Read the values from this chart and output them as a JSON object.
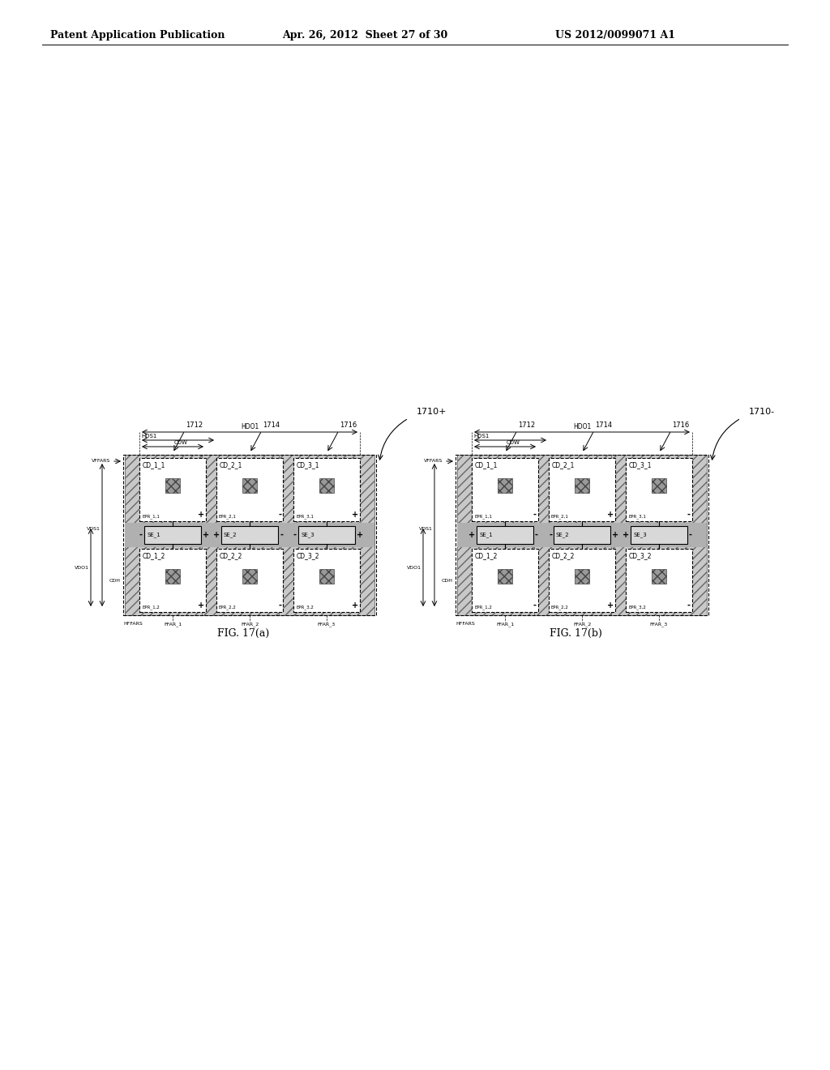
{
  "title_left": "Patent Application Publication",
  "title_mid": "Apr. 26, 2012  Sheet 27 of 30",
  "title_right": "US 2012/0099071 A1",
  "fig_a_label": "FIG. 17(a)",
  "fig_b_label": "FIG. 17(b)",
  "diagram_a": {
    "label": "1710+",
    "hdo1": "HDO1",
    "hds1": "HDS1",
    "cdw": "CDW",
    "ref_1712": "1712",
    "ref_1714": "1714",
    "ref_1716": "1716",
    "vffars": "VFFARS",
    "vds1": "VDS1",
    "vdo1": "VDO1",
    "cdh": "CDH",
    "hffars": "HFFARS",
    "ffar1": "FFAR_1",
    "ffar2": "FFAR_2",
    "ffar3": "FFAR_3",
    "cells_top": [
      "CD_1_1",
      "CD_2_1",
      "CD_3_1"
    ],
    "cells_bot": [
      "CD_1_2",
      "CD_2_2",
      "CD_3_2"
    ],
    "se_labels": [
      "SE_1",
      "SE_2",
      "SE_3"
    ],
    "epr_top": [
      "EPR_1,1",
      "EPR_2,1",
      "EPR_3,1"
    ],
    "epr_bot": [
      "EPR_1,2",
      "EPR_2,2",
      "EPR_3,2"
    ],
    "top_signs": [
      "+",
      "-",
      "+"
    ],
    "mid_left_signs": [
      "-",
      "+",
      "-"
    ],
    "mid_right_signs": [
      "+",
      "-",
      "+"
    ],
    "bot_signs": [
      "+",
      "-",
      "+"
    ]
  },
  "diagram_b": {
    "label": "1710-",
    "hdo1": "HDO1",
    "hds1": "HDS1",
    "cdw": "CDW",
    "ref_1712": "1712",
    "ref_1714": "1714",
    "ref_1716": "1716",
    "vffars": "VFFARS",
    "vds1": "VDS1",
    "vdo1": "VDO1",
    "cdh": "CDH",
    "hffars": "HFFARS",
    "ffar1": "FFAR_1",
    "ffar2": "FFAR_2",
    "ffar3": "FFAR_3",
    "cells_top": [
      "CD_1_1",
      "CD_2_1",
      "CD_3_1"
    ],
    "cells_bot": [
      "CD_1_2",
      "CD_2_2",
      "CD_3_2"
    ],
    "se_labels": [
      "SE_1",
      "SE_2",
      "SE_3"
    ],
    "epr_top": [
      "EPR_1,1",
      "EPR_2,1",
      "EPR_3,1"
    ],
    "epr_bot": [
      "EPR_1,2",
      "EPR_2,2",
      "EPR_3,2"
    ],
    "top_signs": [
      "-",
      "+",
      "-"
    ],
    "mid_left_signs": [
      "+",
      "-",
      "+"
    ],
    "mid_right_signs": [
      "-",
      "+",
      "-"
    ],
    "bot_signs": [
      "-",
      "+",
      "-"
    ]
  },
  "bg_color": "#ffffff",
  "text_color": "#000000"
}
